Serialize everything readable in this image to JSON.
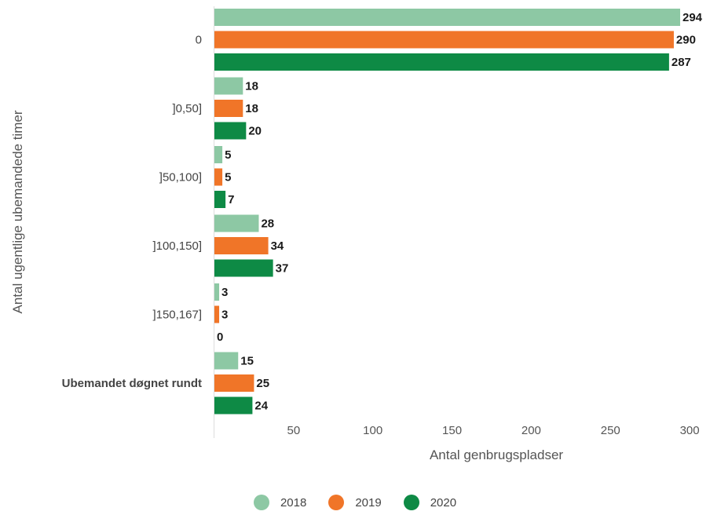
{
  "chart_data": {
    "type": "bar",
    "orientation": "horizontal",
    "categories": [
      "0",
      "]0,50]",
      "]50,100]",
      "]100,150]",
      "]150,167]",
      "Ubemandet døgnet rundt"
    ],
    "series": [
      {
        "name": "2018",
        "color": "#8dc8a4",
        "values": [
          294,
          18,
          5,
          28,
          3,
          15
        ]
      },
      {
        "name": "2019",
        "color": "#f07528",
        "values": [
          290,
          18,
          5,
          34,
          3,
          25
        ]
      },
      {
        "name": "2020",
        "color": "#0e8a45",
        "values": [
          287,
          20,
          7,
          37,
          0,
          24
        ]
      }
    ],
    "xlabel": "Antal genbrugspladser",
    "ylabel": "Antal ugentlige ubemandede timer",
    "xticks": [
      50,
      100,
      150,
      200,
      250,
      300
    ],
    "xlim": [
      0,
      300
    ],
    "grid": false,
    "legend_position": "bottom"
  }
}
